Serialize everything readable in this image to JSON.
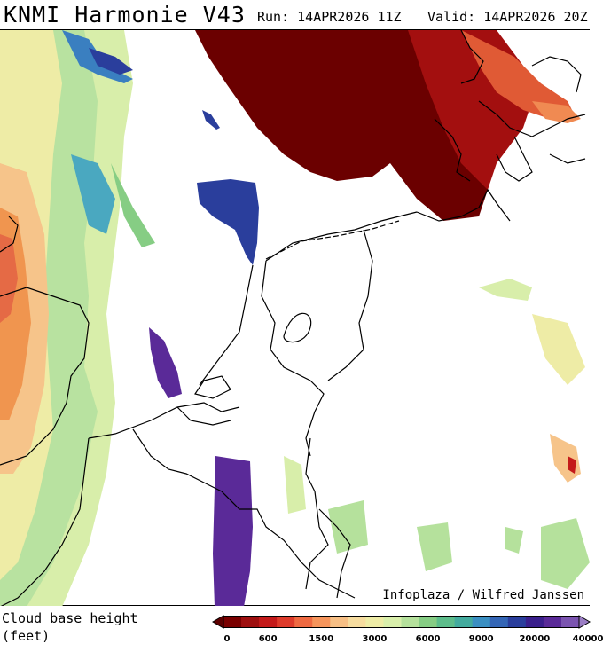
{
  "header": {
    "title": "KNMI Harmonie V43",
    "run_label": "Run:",
    "run_value": "14APR2026 11Z",
    "valid_label": "Valid:",
    "valid_value": "14APR2026 20Z"
  },
  "map": {
    "credit": "Infoplaza / Wilfred Janssen"
  },
  "legend": {
    "title_line1": "Cloud base height",
    "title_line2": "(feet)",
    "colors": [
      "#5c0000",
      "#7a0000",
      "#9e0f0f",
      "#c41a1a",
      "#de3b2b",
      "#ef6a42",
      "#f6955c",
      "#f7bf85",
      "#f6dc9f",
      "#eeeca6",
      "#d9efab",
      "#b5e19c",
      "#86cd84",
      "#5dbd8b",
      "#43ab9e",
      "#3a8fc2",
      "#3466b6",
      "#2a3e9c",
      "#3a1f8c",
      "#5a2a98",
      "#7b54b0",
      "#9a7dc4"
    ],
    "ticks": [
      {
        "label": "0",
        "index": 0
      },
      {
        "label": "600",
        "index": 3
      },
      {
        "label": "1500",
        "index": 6
      },
      {
        "label": "3000",
        "index": 9
      },
      {
        "label": "6000",
        "index": 12
      },
      {
        "label": "9000",
        "index": 15
      },
      {
        "label": "20000",
        "index": 18
      },
      {
        "label": "40000",
        "index": 21
      }
    ]
  }
}
